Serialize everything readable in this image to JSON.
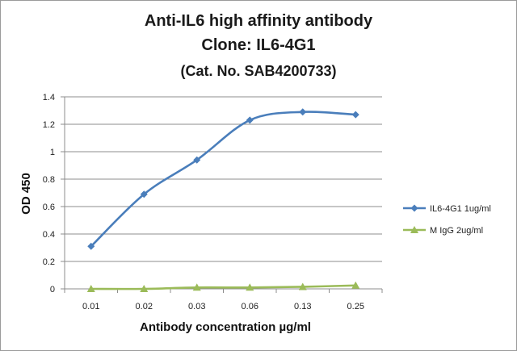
{
  "chart_data": {
    "type": "line",
    "title_lines": [
      "Anti-IL6 high affinity antibody",
      "Clone: IL6-4G1",
      "(Cat. No. SAB4200733)"
    ],
    "xlabel": "Antibody concentration µg/ml",
    "ylabel": "OD 450",
    "categories": [
      "0.01",
      "0.02",
      "0.03",
      "0.06",
      "0.13",
      "0.25"
    ],
    "ylim": [
      0,
      1.4
    ],
    "yticks": [
      "0",
      "0.2",
      "0.4",
      "0.6",
      "0.8",
      "1",
      "1.2",
      "1.4"
    ],
    "grid": true,
    "legend_position": "right",
    "series": [
      {
        "name": "IL6-4G1 1ug/ml",
        "values": [
          0.31,
          0.69,
          0.94,
          1.23,
          1.29,
          1.27
        ],
        "color": "#4a7ebb",
        "marker": "diamond"
      },
      {
        "name": "M IgG 2ug/ml",
        "values": [
          0.0,
          0.0,
          0.01,
          0.01,
          0.015,
          0.025
        ],
        "color": "#9bbb59",
        "marker": "triangle"
      }
    ]
  }
}
